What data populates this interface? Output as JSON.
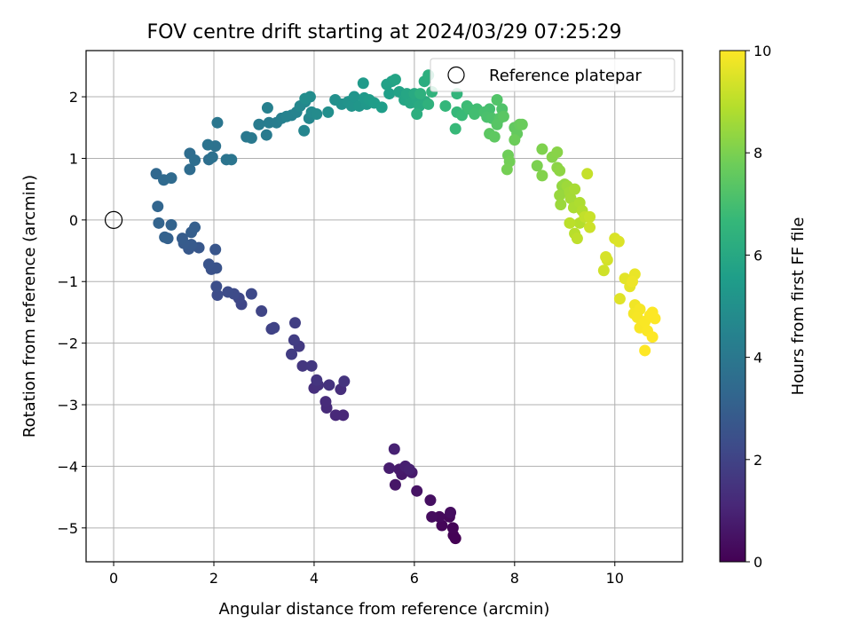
{
  "chart_data": {
    "type": "scatter",
    "title": "FOV centre drift starting at 2024/03/29 07:25:29",
    "xlabel": "Angular distance from reference (arcmin)",
    "ylabel": "Rotation from reference (arcmin)",
    "xlim": [
      -0.55,
      11.35
    ],
    "ylim": [
      -5.55,
      2.75
    ],
    "xticks": [
      0,
      2,
      4,
      6,
      8,
      10
    ],
    "yticks": [
      -5,
      -4,
      -3,
      -2,
      -1,
      0,
      1,
      2
    ],
    "grid": true,
    "legend": {
      "position": "top-right",
      "entries": [
        "Reference platepar"
      ]
    },
    "colorbar": {
      "label": "Hours from first FF file",
      "min": 0,
      "max": 10,
      "ticks": [
        0,
        2,
        4,
        6,
        8,
        10
      ],
      "colormap": "viridis"
    },
    "reference_point": {
      "x": 0,
      "y": 0
    },
    "series": [
      {
        "encoding": "x, y (arcmin), c (hours)",
        "points": [
          [
            6.82,
            -5.17,
            0.0
          ],
          [
            6.78,
            -5.12,
            0.05
          ],
          [
            6.77,
            -5.0,
            0.1
          ],
          [
            6.55,
            -4.96,
            0.15
          ],
          [
            6.7,
            -4.82,
            0.2
          ],
          [
            6.5,
            -4.82,
            0.25
          ],
          [
            6.35,
            -4.82,
            0.3
          ],
          [
            6.72,
            -4.75,
            0.35
          ],
          [
            6.32,
            -4.55,
            0.4
          ],
          [
            6.05,
            -4.4,
            0.5
          ],
          [
            5.62,
            -4.3,
            0.6
          ],
          [
            5.75,
            -4.13,
            0.65
          ],
          [
            5.7,
            -4.05,
            0.7
          ],
          [
            5.95,
            -4.1,
            0.75
          ],
          [
            5.5,
            -4.03,
            0.8
          ],
          [
            5.82,
            -4.0,
            0.85
          ],
          [
            5.9,
            -4.05,
            0.9
          ],
          [
            5.6,
            -3.72,
            0.95
          ],
          [
            4.58,
            -3.17,
            1.1
          ],
          [
            4.43,
            -3.17,
            1.15
          ],
          [
            4.25,
            -3.05,
            1.2
          ],
          [
            4.23,
            -2.95,
            1.25
          ],
          [
            4.53,
            -2.75,
            1.3
          ],
          [
            4.0,
            -2.73,
            1.35
          ],
          [
            4.08,
            -2.68,
            1.4
          ],
          [
            4.3,
            -2.68,
            1.45
          ],
          [
            4.6,
            -2.62,
            1.5
          ],
          [
            4.05,
            -2.6,
            1.55
          ],
          [
            3.77,
            -2.37,
            1.6
          ],
          [
            3.95,
            -2.37,
            1.65
          ],
          [
            3.7,
            -2.05,
            1.7
          ],
          [
            3.55,
            -2.18,
            1.75
          ],
          [
            3.6,
            -1.95,
            1.8
          ],
          [
            3.62,
            -1.67,
            1.85
          ],
          [
            3.15,
            -1.77,
            1.95
          ],
          [
            3.2,
            -1.75,
            2.0
          ],
          [
            2.95,
            -1.48,
            2.05
          ],
          [
            2.55,
            -1.37,
            2.1
          ],
          [
            2.5,
            -1.27,
            2.15
          ],
          [
            2.75,
            -1.2,
            2.2
          ],
          [
            2.4,
            -1.2,
            2.25
          ],
          [
            2.28,
            -1.17,
            2.3
          ],
          [
            2.07,
            -1.22,
            2.35
          ],
          [
            2.05,
            -1.08,
            2.4
          ],
          [
            1.95,
            -0.8,
            2.5
          ],
          [
            2.05,
            -0.78,
            2.55
          ],
          [
            1.9,
            -0.72,
            2.6
          ],
          [
            2.03,
            -0.48,
            2.65
          ],
          [
            1.7,
            -0.45,
            2.7
          ],
          [
            1.5,
            -0.47,
            2.75
          ],
          [
            1.55,
            -0.4,
            2.8
          ],
          [
            1.4,
            -0.38,
            2.85
          ],
          [
            1.37,
            -0.3,
            2.9
          ],
          [
            1.55,
            -0.2,
            2.95
          ],
          [
            1.62,
            -0.12,
            3.0
          ],
          [
            1.08,
            -0.3,
            3.05
          ],
          [
            1.02,
            -0.28,
            3.1
          ],
          [
            1.15,
            -0.08,
            3.15
          ],
          [
            0.9,
            -0.05,
            3.2
          ],
          [
            0.88,
            0.22,
            3.25
          ],
          [
            0.85,
            0.75,
            3.35
          ],
          [
            1.0,
            0.65,
            3.4
          ],
          [
            1.15,
            0.68,
            3.45
          ],
          [
            1.52,
            0.82,
            3.5
          ],
          [
            1.52,
            1.08,
            3.55
          ],
          [
            1.62,
            0.97,
            3.6
          ],
          [
            1.9,
            0.98,
            3.65
          ],
          [
            1.97,
            1.02,
            3.7
          ],
          [
            2.03,
            1.2,
            3.75
          ],
          [
            1.88,
            1.22,
            3.8
          ],
          [
            2.25,
            0.98,
            3.85
          ],
          [
            2.35,
            0.98,
            3.9
          ],
          [
            2.07,
            1.58,
            3.95
          ],
          [
            2.65,
            1.35,
            4.0
          ],
          [
            2.75,
            1.33,
            4.05
          ],
          [
            3.05,
            1.38,
            4.1
          ],
          [
            2.9,
            1.55,
            4.15
          ],
          [
            3.1,
            1.58,
            4.2
          ],
          [
            3.25,
            1.58,
            4.25
          ],
          [
            3.35,
            1.65,
            4.3
          ],
          [
            3.07,
            1.82,
            4.35
          ],
          [
            3.55,
            1.7,
            4.4
          ],
          [
            3.45,
            1.68,
            4.45
          ],
          [
            3.65,
            1.75,
            4.5
          ],
          [
            3.8,
            1.45,
            4.55
          ],
          [
            3.9,
            1.65,
            4.6
          ],
          [
            3.72,
            1.85,
            4.65
          ],
          [
            3.82,
            1.92,
            4.7
          ],
          [
            3.95,
            1.75,
            4.75
          ],
          [
            4.05,
            1.72,
            4.8
          ],
          [
            3.92,
            2.0,
            4.85
          ],
          [
            3.82,
            1.97,
            4.9
          ],
          [
            4.28,
            1.75,
            4.95
          ],
          [
            4.42,
            1.95,
            5.0
          ],
          [
            4.55,
            1.88,
            5.05
          ],
          [
            4.68,
            1.92,
            5.1
          ],
          [
            4.75,
            1.85,
            5.15
          ],
          [
            4.8,
            2.0,
            5.2
          ],
          [
            4.9,
            1.85,
            5.25
          ],
          [
            5.05,
            1.88,
            5.3
          ],
          [
            5.0,
            1.98,
            5.35
          ],
          [
            4.98,
            2.22,
            5.4
          ],
          [
            5.1,
            1.95,
            5.45
          ],
          [
            5.2,
            1.9,
            5.5
          ],
          [
            5.35,
            1.83,
            5.55
          ],
          [
            5.5,
            2.05,
            5.6
          ],
          [
            5.55,
            2.25,
            5.65
          ],
          [
            5.45,
            2.2,
            5.7
          ],
          [
            5.7,
            2.08,
            5.75
          ],
          [
            5.62,
            2.28,
            5.8
          ],
          [
            5.8,
            1.95,
            5.85
          ],
          [
            5.85,
            2.05,
            5.9
          ],
          [
            5.92,
            1.9,
            5.95
          ],
          [
            6.05,
            1.95,
            6.0
          ],
          [
            6.0,
            2.05,
            6.05
          ],
          [
            6.1,
            1.85,
            6.1
          ],
          [
            6.22,
            1.92,
            6.15
          ],
          [
            6.2,
            2.25,
            6.2
          ],
          [
            6.05,
            1.72,
            6.25
          ],
          [
            6.28,
            2.35,
            6.3
          ],
          [
            6.12,
            2.05,
            6.35
          ],
          [
            6.28,
            1.88,
            6.4
          ],
          [
            6.35,
            2.08,
            6.45
          ],
          [
            6.85,
            2.05,
            6.55
          ],
          [
            6.62,
            1.85,
            6.6
          ],
          [
            6.85,
            1.75,
            6.65
          ],
          [
            6.82,
            1.48,
            6.7
          ],
          [
            6.95,
            1.7,
            6.75
          ],
          [
            7.05,
            1.85,
            6.8
          ],
          [
            7.1,
            1.8,
            6.85
          ],
          [
            7.25,
            1.8,
            6.9
          ],
          [
            7.2,
            1.72,
            6.95
          ],
          [
            7.5,
            1.8,
            7.0
          ],
          [
            7.4,
            1.75,
            7.05
          ],
          [
            7.45,
            1.67,
            7.1
          ],
          [
            7.55,
            1.65,
            7.15
          ],
          [
            7.75,
            1.8,
            7.2
          ],
          [
            7.65,
            1.95,
            7.25
          ],
          [
            7.7,
            1.65,
            7.3
          ],
          [
            7.65,
            1.55,
            7.35
          ],
          [
            7.78,
            1.68,
            7.4
          ],
          [
            7.5,
            1.4,
            7.45
          ],
          [
            7.6,
            1.35,
            7.5
          ],
          [
            8.0,
            1.5,
            7.55
          ],
          [
            8.05,
            1.4,
            7.6
          ],
          [
            8.1,
            1.55,
            7.65
          ],
          [
            8.15,
            1.55,
            7.7
          ],
          [
            8.0,
            1.3,
            7.75
          ],
          [
            7.87,
            1.05,
            7.8
          ],
          [
            7.9,
            0.95,
            7.85
          ],
          [
            7.85,
            0.82,
            7.9
          ],
          [
            8.45,
            0.88,
            8.0
          ],
          [
            8.55,
            1.15,
            8.05
          ],
          [
            8.55,
            0.72,
            8.1
          ],
          [
            8.75,
            1.02,
            8.15
          ],
          [
            8.85,
            1.1,
            8.2
          ],
          [
            8.85,
            0.85,
            8.25
          ],
          [
            8.9,
            0.8,
            8.3
          ],
          [
            8.95,
            0.55,
            8.35
          ],
          [
            9.0,
            0.58,
            8.4
          ],
          [
            8.9,
            0.4,
            8.45
          ],
          [
            8.92,
            0.25,
            8.5
          ],
          [
            9.05,
            0.55,
            8.55
          ],
          [
            9.1,
            0.45,
            8.6
          ],
          [
            9.12,
            0.35,
            8.65
          ],
          [
            9.2,
            0.5,
            8.7
          ],
          [
            9.18,
            0.2,
            8.75
          ],
          [
            9.3,
            0.28,
            8.8
          ],
          [
            9.35,
            0.15,
            8.85
          ],
          [
            9.3,
            -0.05,
            8.9
          ],
          [
            9.2,
            -0.22,
            8.95
          ],
          [
            9.1,
            -0.05,
            9.0
          ],
          [
            9.25,
            -0.3,
            9.05
          ],
          [
            9.4,
            0.05,
            9.1
          ],
          [
            9.45,
            0.75,
            9.15
          ],
          [
            9.5,
            0.05,
            9.2
          ],
          [
            9.5,
            -0.12,
            9.25
          ],
          [
            9.78,
            -0.82,
            9.3
          ],
          [
            9.85,
            -0.65,
            9.35
          ],
          [
            9.82,
            -0.6,
            9.4
          ],
          [
            10.0,
            -0.3,
            9.45
          ],
          [
            10.08,
            -0.35,
            9.5
          ],
          [
            10.1,
            -1.28,
            9.55
          ],
          [
            10.2,
            -0.95,
            9.6
          ],
          [
            10.3,
            -1.08,
            9.65
          ],
          [
            10.4,
            -0.88,
            9.7
          ],
          [
            10.35,
            -1.0,
            9.75
          ],
          [
            10.4,
            -1.38,
            9.8
          ],
          [
            10.38,
            -1.52,
            9.85
          ],
          [
            10.5,
            -1.45,
            9.88
          ],
          [
            10.45,
            -1.58,
            9.9
          ],
          [
            10.5,
            -1.75,
            9.92
          ],
          [
            10.6,
            -1.65,
            9.94
          ],
          [
            10.65,
            -1.8,
            9.96
          ],
          [
            10.7,
            -1.55,
            9.97
          ],
          [
            10.75,
            -1.5,
            9.98
          ],
          [
            10.8,
            -1.6,
            9.99
          ],
          [
            10.75,
            -1.9,
            10.0
          ],
          [
            10.6,
            -2.12,
            10.0
          ]
        ]
      }
    ]
  }
}
